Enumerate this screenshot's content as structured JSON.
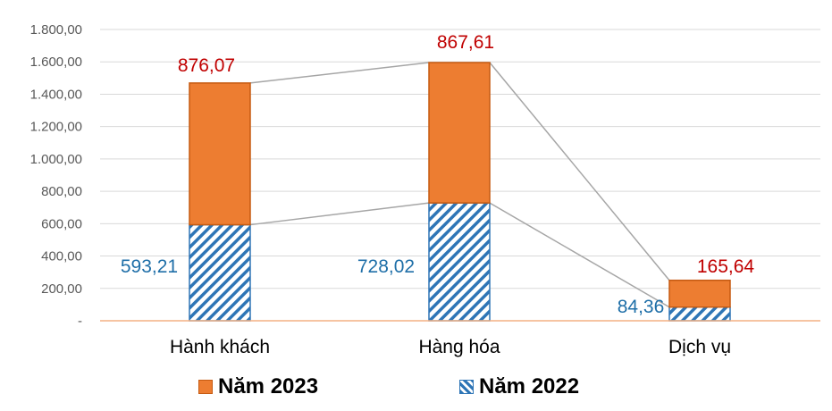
{
  "chart_data": {
    "type": "bar",
    "stacked": true,
    "categories": [
      "Hành khách",
      "Hàng hóa",
      "Dịch vụ"
    ],
    "series": [
      {
        "name": "Năm 2022",
        "values": [
          593.21,
          728.02,
          84.36
        ],
        "labels": [
          "593,21",
          "728,02",
          "84,36"
        ],
        "color": "#2e75b6",
        "pattern": "diagonal-hatch"
      },
      {
        "name": "Năm 2023",
        "values": [
          876.07,
          867.61,
          165.64
        ],
        "labels": [
          "876,07",
          "867,61",
          "165,64"
        ],
        "color": "#ed7d31"
      }
    ],
    "ylim": [
      0,
      1800
    ],
    "yticks": [
      0,
      200,
      400,
      600,
      800,
      1000,
      1200,
      1400,
      1600,
      1800
    ],
    "ytick_labels": [
      "-",
      "200,00",
      "400,00",
      "600,00",
      "800,00",
      "1.000,00",
      "1.200,00",
      "1.400,00",
      "1.600,00",
      "1.800,00"
    ],
    "grid": true,
    "series_lines": true,
    "legend_position": "bottom",
    "label_color_2023": "#c00000",
    "label_color_2022": "#1f6fa8",
    "axis_color": "#f4b183"
  },
  "legend": {
    "items": [
      "Năm 2023",
      "Năm 2022"
    ]
  }
}
